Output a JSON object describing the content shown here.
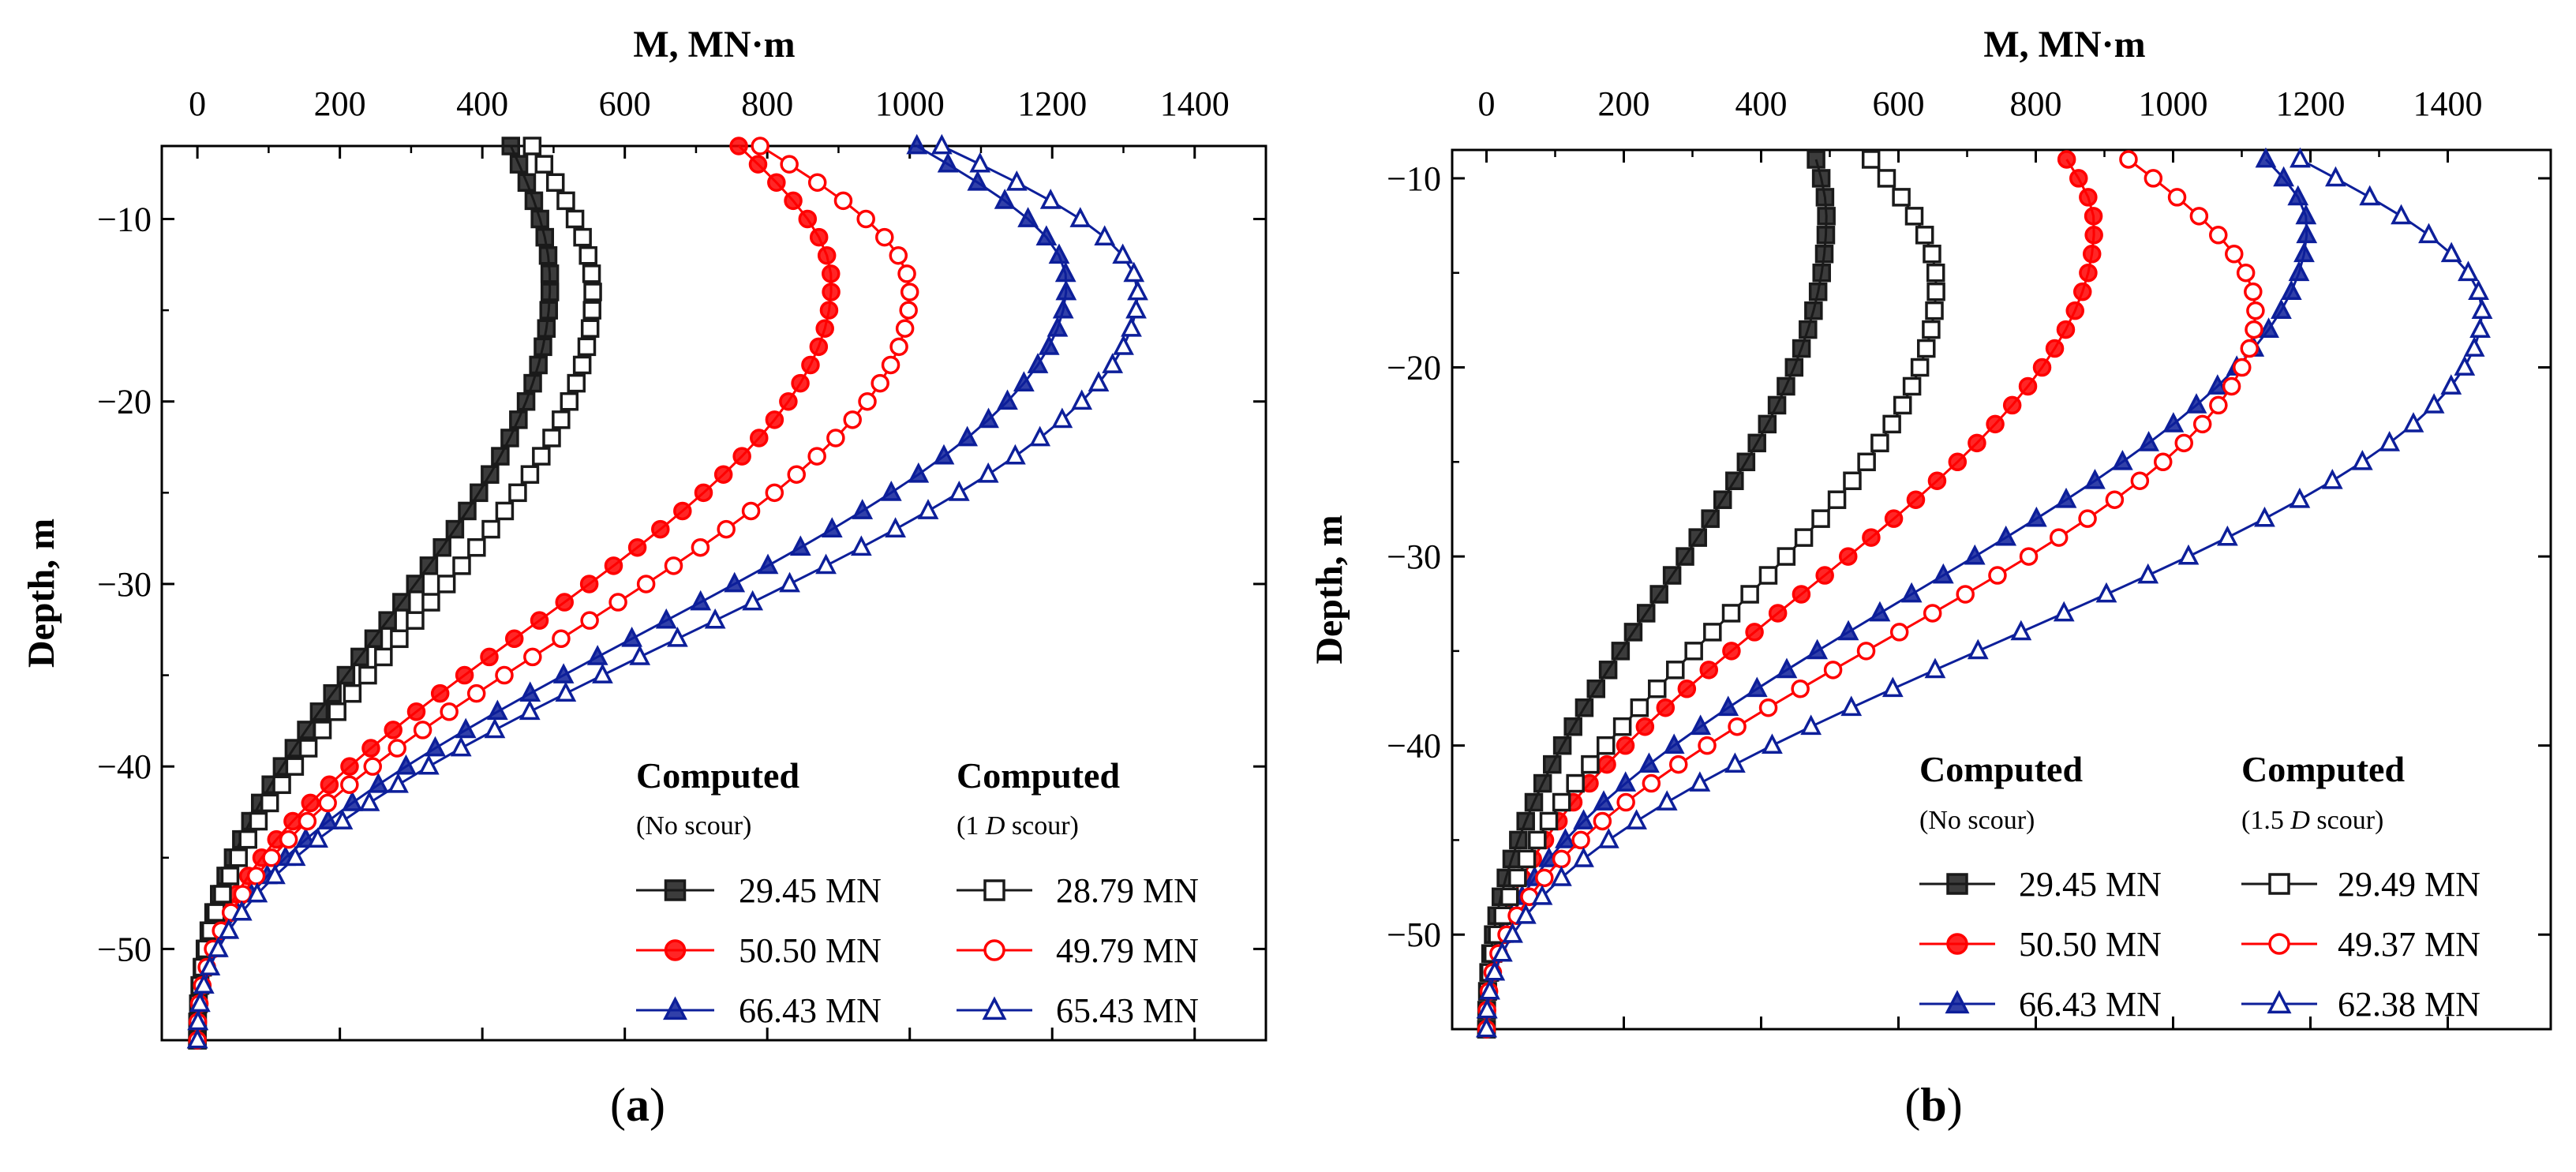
{
  "chart_data": [
    {
      "type": "line",
      "panel_label": "a",
      "xlabel": "M, MN·m",
      "ylabel": "Depth, m",
      "xlim": [
        -50,
        1500
      ],
      "ylim": [
        -55,
        -6
      ],
      "xticks": [
        0,
        200,
        400,
        600,
        800,
        1000,
        1200,
        1400
      ],
      "xtick_labels": [
        "0",
        "200",
        "400",
        "600",
        "800",
        "1000",
        "1200",
        "1400"
      ],
      "yticks": [
        -10,
        -20,
        -30,
        -40,
        -50
      ],
      "ytick_labels": [
        "−10",
        "−20",
        "−30",
        "−40",
        "−50"
      ],
      "legend": {
        "left_head": "Computed",
        "left_sub": "(No scour)",
        "right_head": "Computed",
        "right_sub_prefix": "(1 ",
        "right_sub_italic": "D",
        "right_sub_suffix": " scour)"
      },
      "series": [
        {
          "name": "29.45 MN",
          "group": "No scour",
          "color": "#1a1a1a",
          "marker": "square",
          "filled": true,
          "surface": -6,
          "peak_depth": -13.5,
          "peak_m": 495,
          "m_at_surface": 440
        },
        {
          "name": "50.50 MN",
          "group": "No scour",
          "color": "#ff0000",
          "marker": "circle",
          "filled": true,
          "surface": -6,
          "peak_depth": -13.5,
          "peak_m": 890,
          "m_at_surface": 760
        },
        {
          "name": "66.43 MN",
          "group": "No scour",
          "color": "#0d1f9a",
          "marker": "triangle",
          "filled": true,
          "surface": -6,
          "peak_depth": -13.5,
          "peak_m": 1220,
          "m_at_surface": 1010
        },
        {
          "name": "28.79 MN",
          "group": "1 D scour",
          "color": "#1a1a1a",
          "marker": "square",
          "filled": false,
          "surface": -6,
          "peak_depth": -14,
          "peak_m": 555,
          "m_at_surface": 470
        },
        {
          "name": "49.79 MN",
          "group": "1 D scour",
          "color": "#ff0000",
          "marker": "circle",
          "filled": false,
          "surface": -6,
          "peak_depth": -14,
          "peak_m": 1000,
          "m_at_surface": 790
        },
        {
          "name": "65.43 MN",
          "group": "1 D scour",
          "color": "#0d1f9a",
          "marker": "triangle",
          "filled": false,
          "surface": -6,
          "peak_depth": -14,
          "peak_m": 1320,
          "m_at_surface": 1045
        }
      ]
    },
    {
      "type": "line",
      "panel_label": "b",
      "xlabel": "M, MN·m",
      "ylabel": "Depth, m",
      "xlim": [
        -50,
        1550
      ],
      "ylim": [
        -55,
        -8.5
      ],
      "xticks": [
        0,
        200,
        400,
        600,
        800,
        1000,
        1200,
        1400
      ],
      "xtick_labels": [
        "0",
        "200",
        "400",
        "600",
        "800",
        "1000",
        "1200",
        "1400"
      ],
      "yticks": [
        -10,
        -20,
        -30,
        -40,
        -50
      ],
      "ytick_labels": [
        "−10",
        "−20",
        "−30",
        "−40",
        "−50"
      ],
      "legend": {
        "left_head": "Computed",
        "left_sub": "(No scour)",
        "right_head": "Computed",
        "right_sub_prefix": "(1.5 ",
        "right_sub_italic": "D",
        "right_sub_suffix": " scour)"
      },
      "series": [
        {
          "name": "29.45 MN",
          "group": "No scour",
          "color": "#1a1a1a",
          "marker": "square",
          "filled": true,
          "surface": -9,
          "peak_depth": -12,
          "peak_m": 495,
          "m_at_surface": 480
        },
        {
          "name": "50.50 MN",
          "group": "No scour",
          "color": "#ff0000",
          "marker": "circle",
          "filled": true,
          "surface": -9,
          "peak_depth": -12.5,
          "peak_m": 885,
          "m_at_surface": 845
        },
        {
          "name": "66.43 MN",
          "group": "No scour",
          "color": "#0d1f9a",
          "marker": "triangle",
          "filled": true,
          "surface": -9,
          "peak_depth": -12.5,
          "peak_m": 1195,
          "m_at_surface": 1135
        },
        {
          "name": "29.49 MN",
          "group": "1.5 D scour",
          "color": "#1a1a1a",
          "marker": "square",
          "filled": false,
          "surface": -9,
          "peak_depth": -15.5,
          "peak_m": 655,
          "m_at_surface": 560
        },
        {
          "name": "49.37 MN",
          "group": "1.5 D scour",
          "color": "#ff0000",
          "marker": "circle",
          "filled": false,
          "surface": -9,
          "peak_depth": -17,
          "peak_m": 1120,
          "m_at_surface": 935
        },
        {
          "name": "62.38 MN",
          "group": "1.5 D scour",
          "color": "#0d1f9a",
          "marker": "triangle",
          "filled": false,
          "surface": -9,
          "peak_depth": -17,
          "peak_m": 1450,
          "m_at_surface": 1185
        }
      ]
    }
  ]
}
